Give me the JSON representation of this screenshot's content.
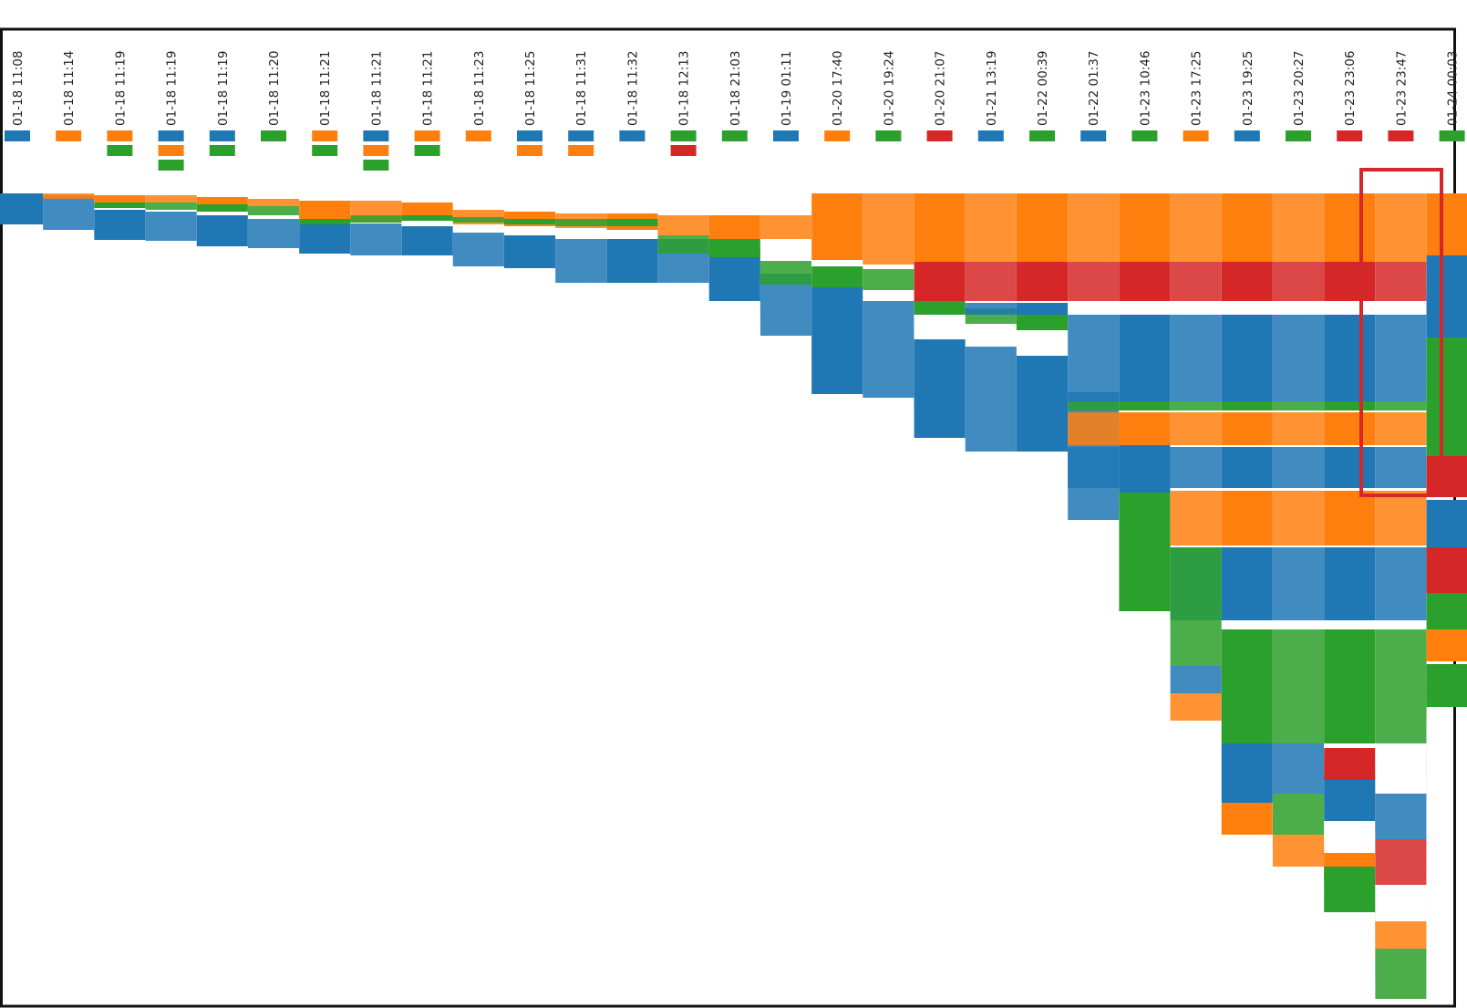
{
  "chart_data": {
    "type": "area",
    "description_type": "storyline-flow",
    "colors": {
      "blue": "#1f77b4",
      "orange": "#ff7f0e",
      "green": "#2ca02c",
      "red": "#d62728"
    },
    "timestamps": [
      "01-18 11:08",
      "01-18 11:14",
      "01-18 11:19",
      "01-18 11:19",
      "01-18 11:19",
      "01-18 11:20",
      "01-18 11:21",
      "01-18 11:21",
      "01-18 11:21",
      "01-18 11:23",
      "01-18 11:25",
      "01-18 11:31",
      "01-18 11:32",
      "01-18 12:13",
      "01-18 21:03",
      "01-19 01:11",
      "01-20 17:40",
      "01-20 19:24",
      "01-20 21:07",
      "01-21 13:19",
      "01-22 00:39",
      "01-22 01:37",
      "01-23 10:46",
      "01-23 17:25",
      "01-23 19:25",
      "01-23 20:27",
      "01-23 23:06",
      "01-23 23:47",
      "01-24 00:03"
    ],
    "event_markers": [
      [
        "blue"
      ],
      [
        "orange"
      ],
      [
        "orange",
        "green"
      ],
      [
        "blue",
        "orange",
        "green"
      ],
      [
        "blue",
        "green"
      ],
      [
        "green"
      ],
      [
        "orange",
        "green"
      ],
      [
        "blue",
        "orange",
        "green"
      ],
      [
        "orange",
        "green"
      ],
      [
        "orange"
      ],
      [
        "blue",
        "orange"
      ],
      [
        "blue",
        "orange"
      ],
      [
        "blue"
      ],
      [
        "green",
        "red"
      ],
      [
        "green"
      ],
      [
        "blue"
      ],
      [
        "orange"
      ],
      [
        "green"
      ],
      [
        "red"
      ],
      [
        "blue"
      ],
      [
        "green"
      ],
      [
        "blue"
      ],
      [
        "green"
      ],
      [
        "orange"
      ],
      [
        "blue"
      ],
      [
        "green"
      ],
      [
        "red"
      ],
      [
        "red"
      ],
      [
        "green"
      ]
    ],
    "grid": false,
    "legend": "none",
    "highlight_box": {
      "from_index": 27,
      "to_index": 28,
      "color": "#d62728"
    }
  }
}
